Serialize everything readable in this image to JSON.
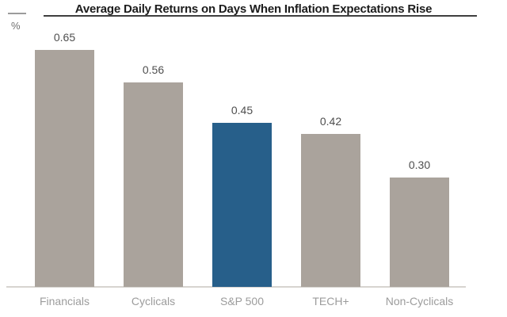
{
  "chart": {
    "title": "Average Daily Returns on Days When Inflation Expectations Rise",
    "unit": "%"
  },
  "colors": {
    "background": "#ffffff",
    "bar_default": "#aaa39c",
    "bar_highlight": "#275f8a",
    "axis_line": "#d7d4d0",
    "top_dash": "#9c9c9c",
    "title_text": "#1c1c1c",
    "title_underline": "#3f3f3f",
    "value_label": "#4f4f4f",
    "category_label": "#9c9c9c",
    "unit_label": "#6f6f6f"
  },
  "chart_data": {
    "type": "bar",
    "title": "Average Daily Returns on Days When Inflation Expectations Rise",
    "categories": [
      "Financials",
      "Cyclicals",
      "S&P 500",
      "TECH+",
      "Non-Cyclicals"
    ],
    "values": [
      0.65,
      0.56,
      0.45,
      0.42,
      0.3
    ],
    "value_labels": [
      "0.65",
      "0.56",
      "0.45",
      "0.42",
      "0.30"
    ],
    "highlight_category": "S&P 500",
    "xlabel": "",
    "ylabel": "%",
    "ylim": [
      0,
      0.72
    ],
    "grid": false,
    "legend": "none",
    "sort_order": "descending",
    "value_labels_position": "above-bars"
  }
}
